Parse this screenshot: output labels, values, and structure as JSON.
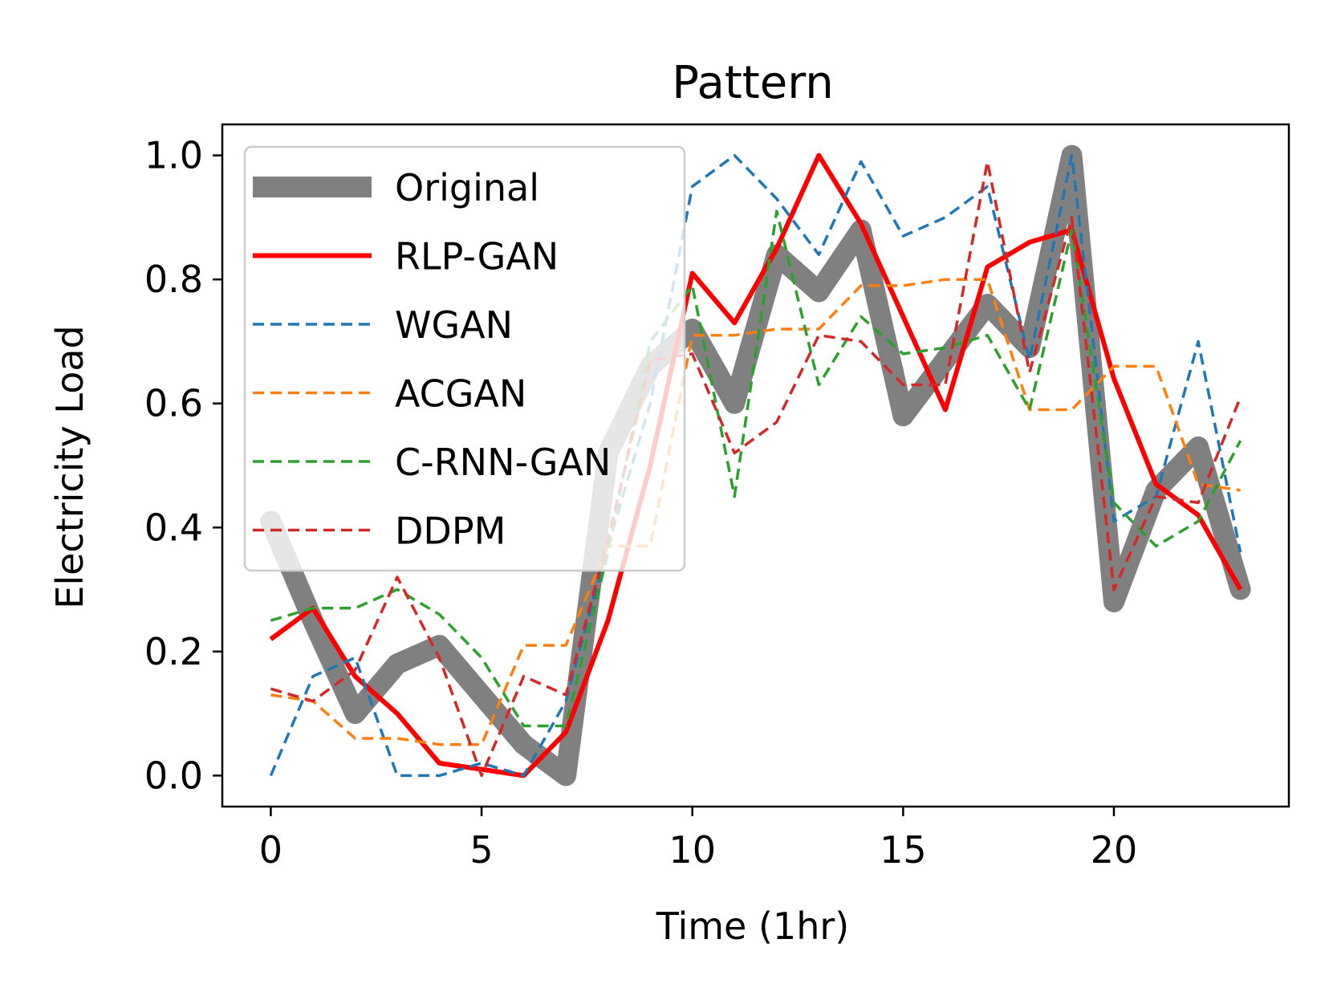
{
  "chart_data": {
    "type": "line",
    "title": "Pattern",
    "xlabel": "Time (1hr)",
    "ylabel": "Electricity Load",
    "xlim": [
      -1.15,
      24.15
    ],
    "ylim": [
      -0.05,
      1.05
    ],
    "xticks": [
      0,
      5,
      10,
      15,
      20
    ],
    "xtick_labels": [
      "0",
      "5",
      "10",
      "15",
      "20"
    ],
    "yticks": [
      0.0,
      0.2,
      0.4,
      0.6,
      0.8,
      1.0
    ],
    "ytick_labels": [
      "0.0",
      "0.2",
      "0.4",
      "0.6",
      "0.8",
      "1.0"
    ],
    "grid": false,
    "legend_position": "upper-left",
    "x": [
      0,
      1,
      2,
      3,
      4,
      5,
      6,
      7,
      8,
      9,
      10,
      11,
      12,
      13,
      14,
      15,
      16,
      17,
      18,
      19,
      20,
      21,
      22,
      23
    ],
    "series": [
      {
        "name": "Original",
        "color": "#808080",
        "style": "solid-thick",
        "values": [
          0.41,
          0.25,
          0.1,
          0.18,
          0.21,
          0.13,
          0.05,
          0.0,
          0.52,
          0.66,
          0.72,
          0.6,
          0.84,
          0.78,
          0.88,
          0.58,
          0.67,
          0.76,
          0.69,
          1.0,
          0.28,
          0.46,
          0.53,
          0.3
        ]
      },
      {
        "name": "RLP-GAN",
        "color": "#ff0000",
        "style": "solid",
        "values": [
          0.22,
          0.27,
          0.16,
          0.1,
          0.02,
          0.01,
          0.0,
          0.07,
          0.25,
          0.5,
          0.81,
          0.73,
          0.85,
          1.0,
          0.89,
          0.74,
          0.59,
          0.82,
          0.86,
          0.88,
          0.64,
          0.47,
          0.42,
          0.3
        ]
      },
      {
        "name": "WGAN",
        "color": "#1f77b4",
        "style": "dashed",
        "values": [
          0.0,
          0.16,
          0.19,
          0.0,
          0.0,
          0.02,
          0.0,
          0.12,
          0.37,
          0.6,
          0.95,
          1.0,
          0.93,
          0.84,
          0.99,
          0.87,
          0.9,
          0.95,
          0.67,
          1.0,
          0.41,
          0.45,
          0.7,
          0.36
        ]
      },
      {
        "name": "ACGAN",
        "color": "#ff7f0e",
        "style": "dashed",
        "values": [
          0.13,
          0.12,
          0.06,
          0.06,
          0.05,
          0.05,
          0.21,
          0.21,
          0.37,
          0.37,
          0.71,
          0.71,
          0.72,
          0.72,
          0.79,
          0.79,
          0.8,
          0.8,
          0.59,
          0.59,
          0.66,
          0.66,
          0.47,
          0.46
        ]
      },
      {
        "name": "C-RNN-GAN",
        "color": "#2ca02c",
        "style": "dashed",
        "values": [
          0.25,
          0.27,
          0.27,
          0.3,
          0.26,
          0.19,
          0.08,
          0.08,
          0.36,
          0.7,
          0.79,
          0.45,
          0.91,
          0.63,
          0.74,
          0.68,
          0.69,
          0.71,
          0.59,
          0.88,
          0.44,
          0.37,
          0.41,
          0.54
        ]
      },
      {
        "name": "DDPM",
        "color": "#d62728",
        "style": "dashed",
        "values": [
          0.14,
          0.12,
          0.17,
          0.32,
          0.19,
          0.0,
          0.16,
          0.13,
          0.38,
          0.67,
          0.68,
          0.52,
          0.57,
          0.71,
          0.7,
          0.63,
          0.63,
          0.99,
          0.65,
          0.9,
          0.3,
          0.45,
          0.44,
          0.61
        ]
      }
    ]
  }
}
